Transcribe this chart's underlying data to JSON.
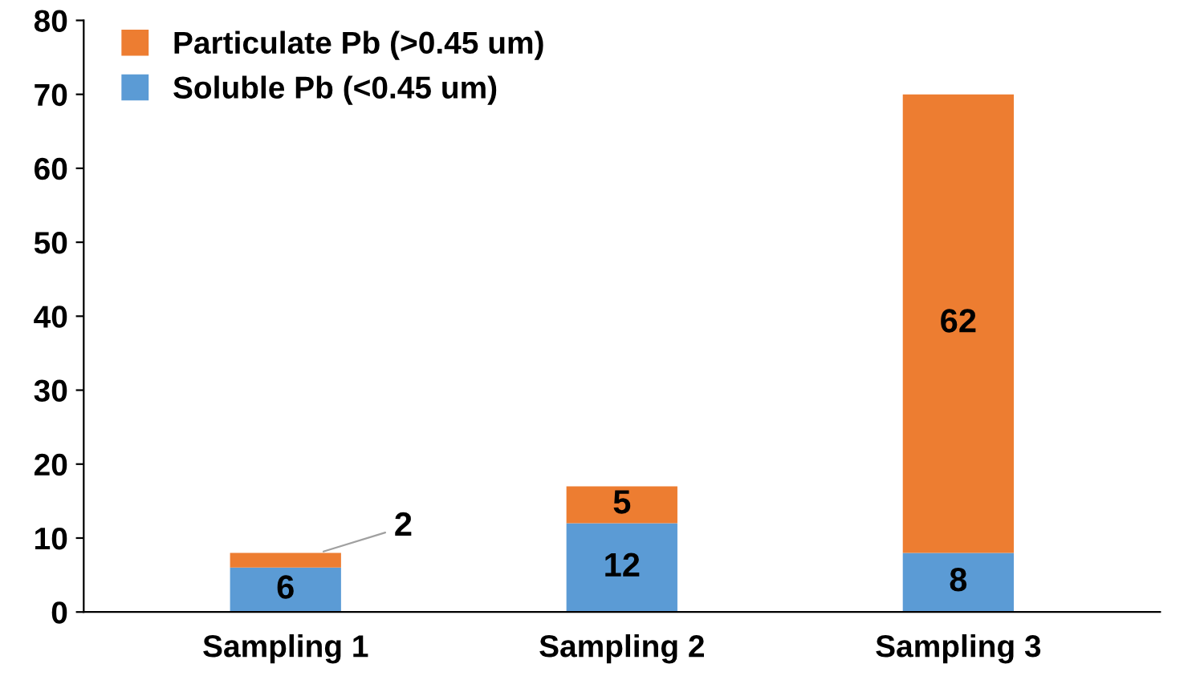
{
  "chart_data": {
    "type": "bar",
    "stacked": true,
    "categories": [
      "Sampling 1",
      "Sampling 2",
      "Sampling 3"
    ],
    "series": [
      {
        "name": "Soluble Pb (<0.45 um)",
        "color": "#5b9bd5",
        "values": [
          6,
          12,
          8
        ]
      },
      {
        "name": "Particulate Pb (>0.45 um)",
        "color": "#ed7d31",
        "values": [
          2,
          5,
          62
        ]
      }
    ],
    "ylim": [
      0,
      80
    ],
    "yticks": [
      0,
      10,
      20,
      30,
      40,
      50,
      60,
      70,
      80
    ],
    "grid": false,
    "legend": "top left",
    "data_labels": true
  }
}
